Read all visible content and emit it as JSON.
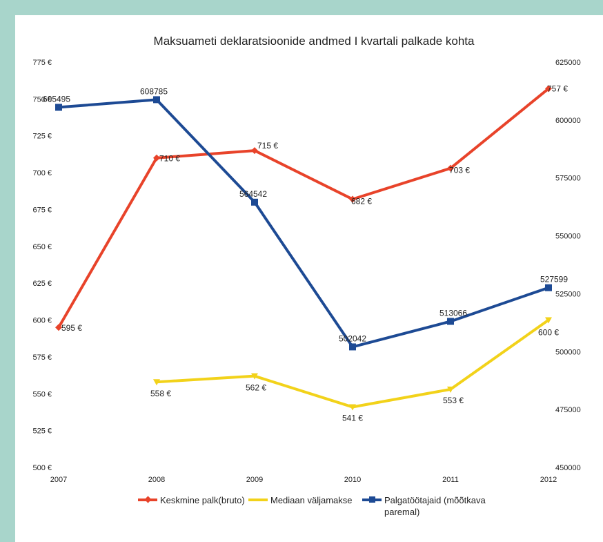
{
  "chart_data": {
    "type": "line",
    "title": "Maksuameti deklaratsioonide andmed I kvartali palkade kohta",
    "categories": [
      "2007",
      "2008",
      "2009",
      "2010",
      "2011",
      "2012"
    ],
    "y_left": {
      "ylim": [
        500,
        775
      ],
      "ticks": [
        500,
        525,
        550,
        575,
        600,
        625,
        650,
        675,
        700,
        725,
        750,
        775
      ],
      "tick_labels": [
        "500 €",
        "525 €",
        "550 €",
        "575 €",
        "600 €",
        "625 €",
        "650 €",
        "675 €",
        "700 €",
        "725 €",
        "750 €",
        "775 €"
      ]
    },
    "y_right": {
      "ylim": [
        450000,
        625000
      ],
      "ticks": [
        450000,
        475000,
        500000,
        525000,
        550000,
        575000,
        600000,
        625000
      ],
      "tick_labels": [
        "450000",
        "475000",
        "500000",
        "525000",
        "550000",
        "575000",
        "600000",
        "625000"
      ]
    },
    "series": [
      {
        "name": "Keskmine palk(bruto)",
        "axis": "left",
        "color": "#e8432a",
        "marker": "diamond",
        "values": [
          595,
          710,
          715,
          682,
          703,
          757
        ],
        "labels": [
          "595 €",
          "710 €",
          "715 €",
          "682 €",
          "703 €",
          "757 €"
        ]
      },
      {
        "name": "Mediaan väljamakse",
        "axis": "left",
        "color": "#f2d21a",
        "marker": "triangle",
        "values": [
          null,
          558,
          562,
          541,
          553,
          600
        ],
        "labels": [
          null,
          "558 €",
          "562 €",
          "541 €",
          "553 €",
          "600 €"
        ]
      },
      {
        "name": "Palgatöötajaid (mõõtkava paremal)",
        "axis": "right",
        "color": "#1d4a94",
        "marker": "square",
        "values": [
          605495,
          608785,
          564542,
          502042,
          513066,
          527599
        ],
        "labels": [
          "605495",
          "608785",
          "564542",
          "502042",
          "513066",
          "527599"
        ]
      }
    ],
    "legend": {
      "placement": "bottom",
      "items": [
        "Keskmine palk(bruto)",
        "Mediaan väljamakse",
        "Palgatöötajaid (mõõtkava",
        "paremal)"
      ]
    },
    "grid": false
  }
}
